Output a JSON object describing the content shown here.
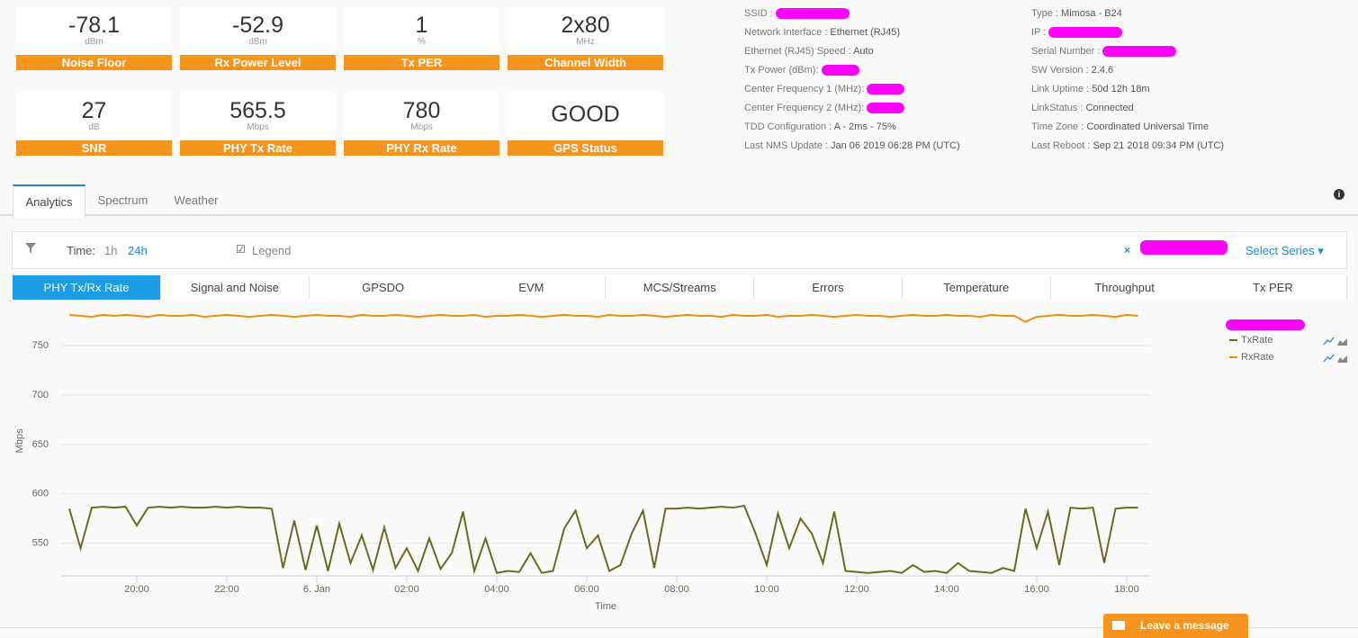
{
  "tiles": [
    {
      "value": "-78.1",
      "unit": "dBm",
      "label": "Noise Floor"
    },
    {
      "value": "-52.9",
      "unit": "dBm",
      "label": "Rx Power Level"
    },
    {
      "value": "1",
      "unit": "%",
      "label": "Tx PER"
    },
    {
      "value": "2x80",
      "unit": "MHz",
      "label": "Channel Width"
    },
    {
      "value": "27",
      "unit": "dB",
      "label": "SNR"
    },
    {
      "value": "565.5",
      "unit": "Mbps",
      "label": "PHY Tx Rate"
    },
    {
      "value": "780",
      "unit": "Mbps",
      "label": "PHY Rx Rate"
    },
    {
      "value": "GOOD",
      "label": "GPS Status"
    }
  ],
  "info_left": [
    {
      "label": "SSID :",
      "redacted": true
    },
    {
      "label": "Network Interface :",
      "value": "Ethernet (RJ45)"
    },
    {
      "label": "Ethernet (RJ45) Speed :",
      "value": "Auto"
    },
    {
      "label": "Tx Power (dBm):",
      "redacted": true
    },
    {
      "label": "Center Frequency 1 (MHz):",
      "redacted": true
    },
    {
      "label": "Center Frequency 2 (MHz):",
      "redacted": true
    },
    {
      "label": "TDD Configuration :",
      "value": "A - 2ms - 75%"
    },
    {
      "label": "Last NMS Update :",
      "value": "Jan 06 2019 06:28 PM (UTC)"
    }
  ],
  "info_right": [
    {
      "label": "Type :",
      "value": "Mimosa - B24"
    },
    {
      "label": "IP :",
      "redacted": true
    },
    {
      "label": "Serial Number :",
      "redacted": true
    },
    {
      "label": "SW Version :",
      "value": "2.4.6"
    },
    {
      "label": "Link Uptime :",
      "value": "50d 12h 18m"
    },
    {
      "label": "LinkStatus :",
      "value": "Connected"
    },
    {
      "label": "Time Zone :",
      "value": "Coordinated Universal Time"
    },
    {
      "label": "Last Reboot :",
      "value": "Sep 21 2018 09:34 PM (UTC)"
    }
  ],
  "tabs": [
    "Analytics",
    "Spectrum",
    "Weather"
  ],
  "filter": {
    "time_label": "Time:",
    "options": [
      "1h",
      "24h"
    ],
    "legend": "Legend",
    "select_series": "Select Series"
  },
  "subtabs": [
    "PHY Tx/Rx Rate",
    "Signal and Noise",
    "GPSDO",
    "EVM",
    "MCS/Streams",
    "Errors",
    "Temperature",
    "Throughput",
    "Tx PER"
  ],
  "button": "Leave a message",
  "chart_data": {
    "type": "line",
    "y_label": "Mbps",
    "x_label": "Time",
    "x": [
      18.5,
      18.75,
      19,
      19.25,
      19.5,
      19.75,
      20,
      20.25,
      20.5,
      20.75,
      21,
      21.25,
      21.5,
      21.75,
      22,
      22.25,
      22.5,
      22.75,
      23,
      23.25,
      23.5,
      23.75,
      24,
      24.25,
      24.5,
      24.75,
      25,
      25.25,
      25.5,
      25.75,
      26,
      26.25,
      26.5,
      26.75,
      27,
      27.25,
      27.5,
      27.75,
      28,
      28.25,
      28.5,
      28.75,
      29,
      29.25,
      29.5,
      29.75,
      30,
      30.25,
      30.5,
      30.75,
      31,
      31.25,
      31.5,
      31.75,
      32,
      32.25,
      32.5,
      32.75,
      33,
      33.25,
      33.5,
      33.75,
      34,
      34.25,
      34.5,
      34.75,
      35,
      35.25,
      35.5,
      35.75,
      36,
      36.25,
      36.5,
      36.75,
      37,
      37.25,
      37.5,
      37.75,
      38,
      38.25,
      38.5,
      38.75,
      39,
      39.25,
      39.5,
      39.75,
      40,
      40.25,
      40.5,
      40.75,
      41,
      41.25,
      41.5,
      41.75,
      42,
      42.25
    ],
    "series": [
      {
        "name": "TxRate",
        "color": "#6b6b1e",
        "values": [
          585,
          545,
          586,
          587,
          586,
          587,
          568,
          586,
          587,
          586,
          587,
          586,
          586,
          587,
          586,
          587,
          586,
          586,
          585,
          525,
          573,
          523,
          568,
          522,
          570,
          530,
          558,
          523,
          566,
          525,
          545,
          522,
          555,
          524,
          540,
          582,
          522,
          555,
          520,
          522,
          521,
          540,
          520,
          522,
          565,
          583,
          545,
          558,
          522,
          528,
          560,
          583,
          525,
          585,
          585,
          586,
          585,
          586,
          587,
          586,
          588,
          560,
          528,
          580,
          545,
          575,
          560,
          530,
          582,
          522,
          521,
          520,
          521,
          522,
          520,
          528,
          521,
          522,
          520,
          530,
          522,
          521,
          520,
          525,
          522,
          585,
          545,
          582,
          528,
          586,
          585,
          586,
          530,
          585,
          586,
          586
        ]
      },
      {
        "name": "RxRate",
        "color": "#f0900a",
        "values": [
          781,
          780,
          779,
          781,
          780,
          781,
          780,
          779,
          781,
          780,
          780,
          781,
          779,
          780,
          781,
          780,
          779,
          780,
          781,
          780,
          779,
          780,
          781,
          780,
          780,
          779,
          781,
          780,
          780,
          781,
          780,
          779,
          780,
          781,
          780,
          780,
          781,
          779,
          780,
          780,
          781,
          780,
          779,
          780,
          781,
          780,
          780,
          779,
          781,
          780,
          780,
          781,
          780,
          779,
          780,
          781,
          780,
          780,
          779,
          781,
          780,
          780,
          781,
          779,
          780,
          780,
          781,
          780,
          779,
          780,
          781,
          780,
          780,
          779,
          780,
          781,
          780,
          780,
          781,
          780,
          780,
          779,
          781,
          780,
          780,
          774,
          779,
          780,
          781,
          780,
          780,
          781,
          780,
          779,
          781,
          780
        ]
      }
    ],
    "xlim": [
      18.32,
      42.52
    ],
    "xticks": [
      {
        "value": 20,
        "label": "20:00"
      },
      {
        "value": 22,
        "label": "22:00"
      },
      {
        "value": 24,
        "label": "6. Jan"
      },
      {
        "value": 26,
        "label": "02:00"
      },
      {
        "value": 28,
        "label": "04:00"
      },
      {
        "value": 30,
        "label": "06:00"
      },
      {
        "value": 32,
        "label": "08:00"
      },
      {
        "value": 34,
        "label": "10:00"
      },
      {
        "value": 36,
        "label": "12:00"
      },
      {
        "value": 38,
        "label": "14:00"
      },
      {
        "value": 40,
        "label": "16:00"
      },
      {
        "value": 42,
        "label": "18:00"
      }
    ],
    "ylim": [
      517,
      790
    ],
    "yticks": [
      550,
      600,
      650,
      700,
      750
    ],
    "grid": true
  }
}
